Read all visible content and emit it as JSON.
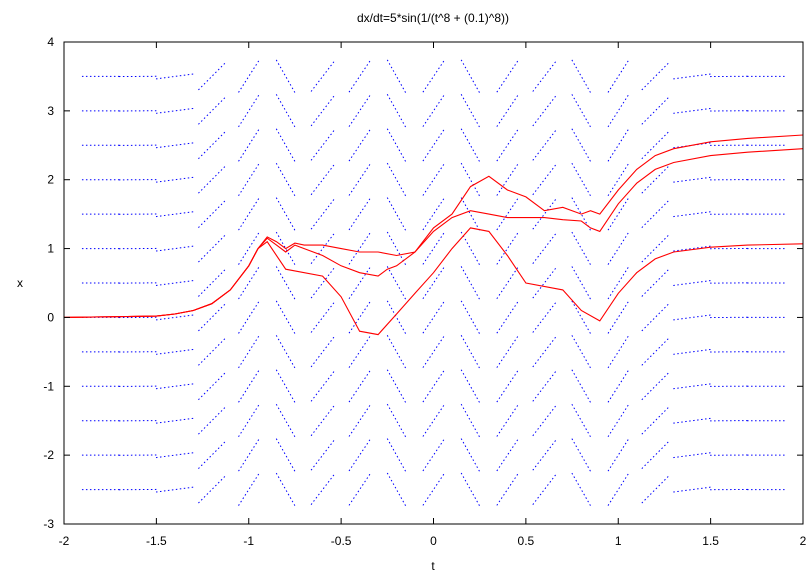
{
  "chart_data": {
    "type": "line",
    "title": "dx/dt=5*sin(1/(t^8 + (0.1)^8))",
    "xlabel": "t",
    "ylabel": "x",
    "xlim": [
      -2,
      2
    ],
    "ylim": [
      -3,
      4
    ],
    "x_ticks": [
      "-2",
      "-1.5",
      "-1",
      "-0.5",
      "0",
      "0.5",
      "1",
      "1.5",
      "2"
    ],
    "y_ticks": [
      "-3",
      "-2",
      "-1",
      "0",
      "1",
      "2",
      "3",
      "4"
    ],
    "grid": false,
    "colors": {
      "field": "#0000ff",
      "solution": "#ff0000"
    },
    "direction_field": {
      "t_values": [
        -1.8,
        -1.6,
        -1.4,
        -1.2,
        -1.0,
        -0.8,
        -0.6,
        -0.4,
        -0.2,
        0.0,
        0.2,
        0.4,
        0.6,
        0.8,
        1.0,
        1.2,
        1.4,
        1.6,
        1.8
      ],
      "x_values": [
        3.5,
        3.0,
        2.5,
        2.0,
        1.5,
        1.0,
        0.5,
        0.0,
        -0.5,
        -1.0,
        -1.5,
        -2.0,
        -2.5
      ],
      "slopes": [
        0.0,
        0.02,
        0.35,
        2.7,
        4.2,
        -4.7,
        3.5,
        4.0,
        -4.8,
        4.0,
        -4.8,
        4.0,
        3.5,
        -4.7,
        4.2,
        2.7,
        0.35,
        0.02,
        0.0
      ]
    },
    "series": [
      {
        "x": [
          -2.0,
          -1.5,
          -1.4,
          -1.3,
          -1.2,
          -1.1,
          -1.0,
          -0.95,
          -0.9,
          -0.85,
          -0.8,
          -0.75,
          -0.7,
          -0.6,
          -0.5,
          -0.4,
          -0.3,
          -0.2,
          -0.1,
          0.0,
          0.1,
          0.2,
          0.3,
          0.4,
          0.5,
          0.6,
          0.7,
          0.8,
          0.85,
          0.9,
          1.0,
          1.1,
          1.2,
          1.3,
          1.5,
          1.7,
          2.0
        ],
        "y": [
          0.0,
          0.02,
          0.05,
          0.1,
          0.2,
          0.4,
          0.75,
          1.0,
          1.17,
          1.1,
          1.0,
          1.08,
          1.05,
          1.05,
          1.0,
          0.95,
          0.95,
          0.9,
          0.95,
          1.3,
          1.5,
          1.9,
          2.05,
          1.85,
          1.75,
          1.55,
          1.6,
          1.5,
          1.55,
          1.5,
          1.85,
          2.15,
          2.35,
          2.45,
          2.55,
          2.6,
          2.65
        ]
      },
      {
        "x": [
          -2.0,
          -1.5,
          -1.4,
          -1.3,
          -1.2,
          -1.1,
          -1.0,
          -0.95,
          -0.9,
          -0.85,
          -0.8,
          -0.75,
          -0.7,
          -0.6,
          -0.5,
          -0.4,
          -0.3,
          -0.25,
          -0.2,
          -0.1,
          0.0,
          0.1,
          0.2,
          0.3,
          0.4,
          0.5,
          0.6,
          0.7,
          0.8,
          0.85,
          0.9,
          1.0,
          1.1,
          1.2,
          1.3,
          1.5,
          1.7,
          2.0
        ],
        "y": [
          0.0,
          0.02,
          0.05,
          0.1,
          0.2,
          0.4,
          0.75,
          1.0,
          1.15,
          1.05,
          0.95,
          1.05,
          1.0,
          0.9,
          0.75,
          0.65,
          0.6,
          0.7,
          0.75,
          0.95,
          1.25,
          1.45,
          1.55,
          1.5,
          1.45,
          1.45,
          1.45,
          1.42,
          1.4,
          1.3,
          1.25,
          1.65,
          1.95,
          2.15,
          2.25,
          2.35,
          2.4,
          2.45
        ]
      },
      {
        "x": [
          -2.0,
          -1.5,
          -1.4,
          -1.3,
          -1.2,
          -1.1,
          -1.0,
          -0.95,
          -0.9,
          -0.8,
          -0.6,
          -0.5,
          -0.4,
          -0.3,
          -0.2,
          -0.1,
          0.0,
          0.1,
          0.2,
          0.3,
          0.4,
          0.5,
          0.7,
          0.8,
          0.9,
          1.0,
          1.1,
          1.2,
          1.3,
          1.5,
          1.7,
          2.0
        ],
        "y": [
          0.0,
          0.02,
          0.05,
          0.1,
          0.2,
          0.4,
          0.75,
          1.0,
          1.1,
          0.7,
          0.6,
          0.3,
          -0.2,
          -0.25,
          0.05,
          0.35,
          0.65,
          1.0,
          1.3,
          1.25,
          0.9,
          0.5,
          0.4,
          0.1,
          -0.05,
          0.35,
          0.65,
          0.85,
          0.95,
          1.02,
          1.05,
          1.07
        ]
      }
    ]
  }
}
